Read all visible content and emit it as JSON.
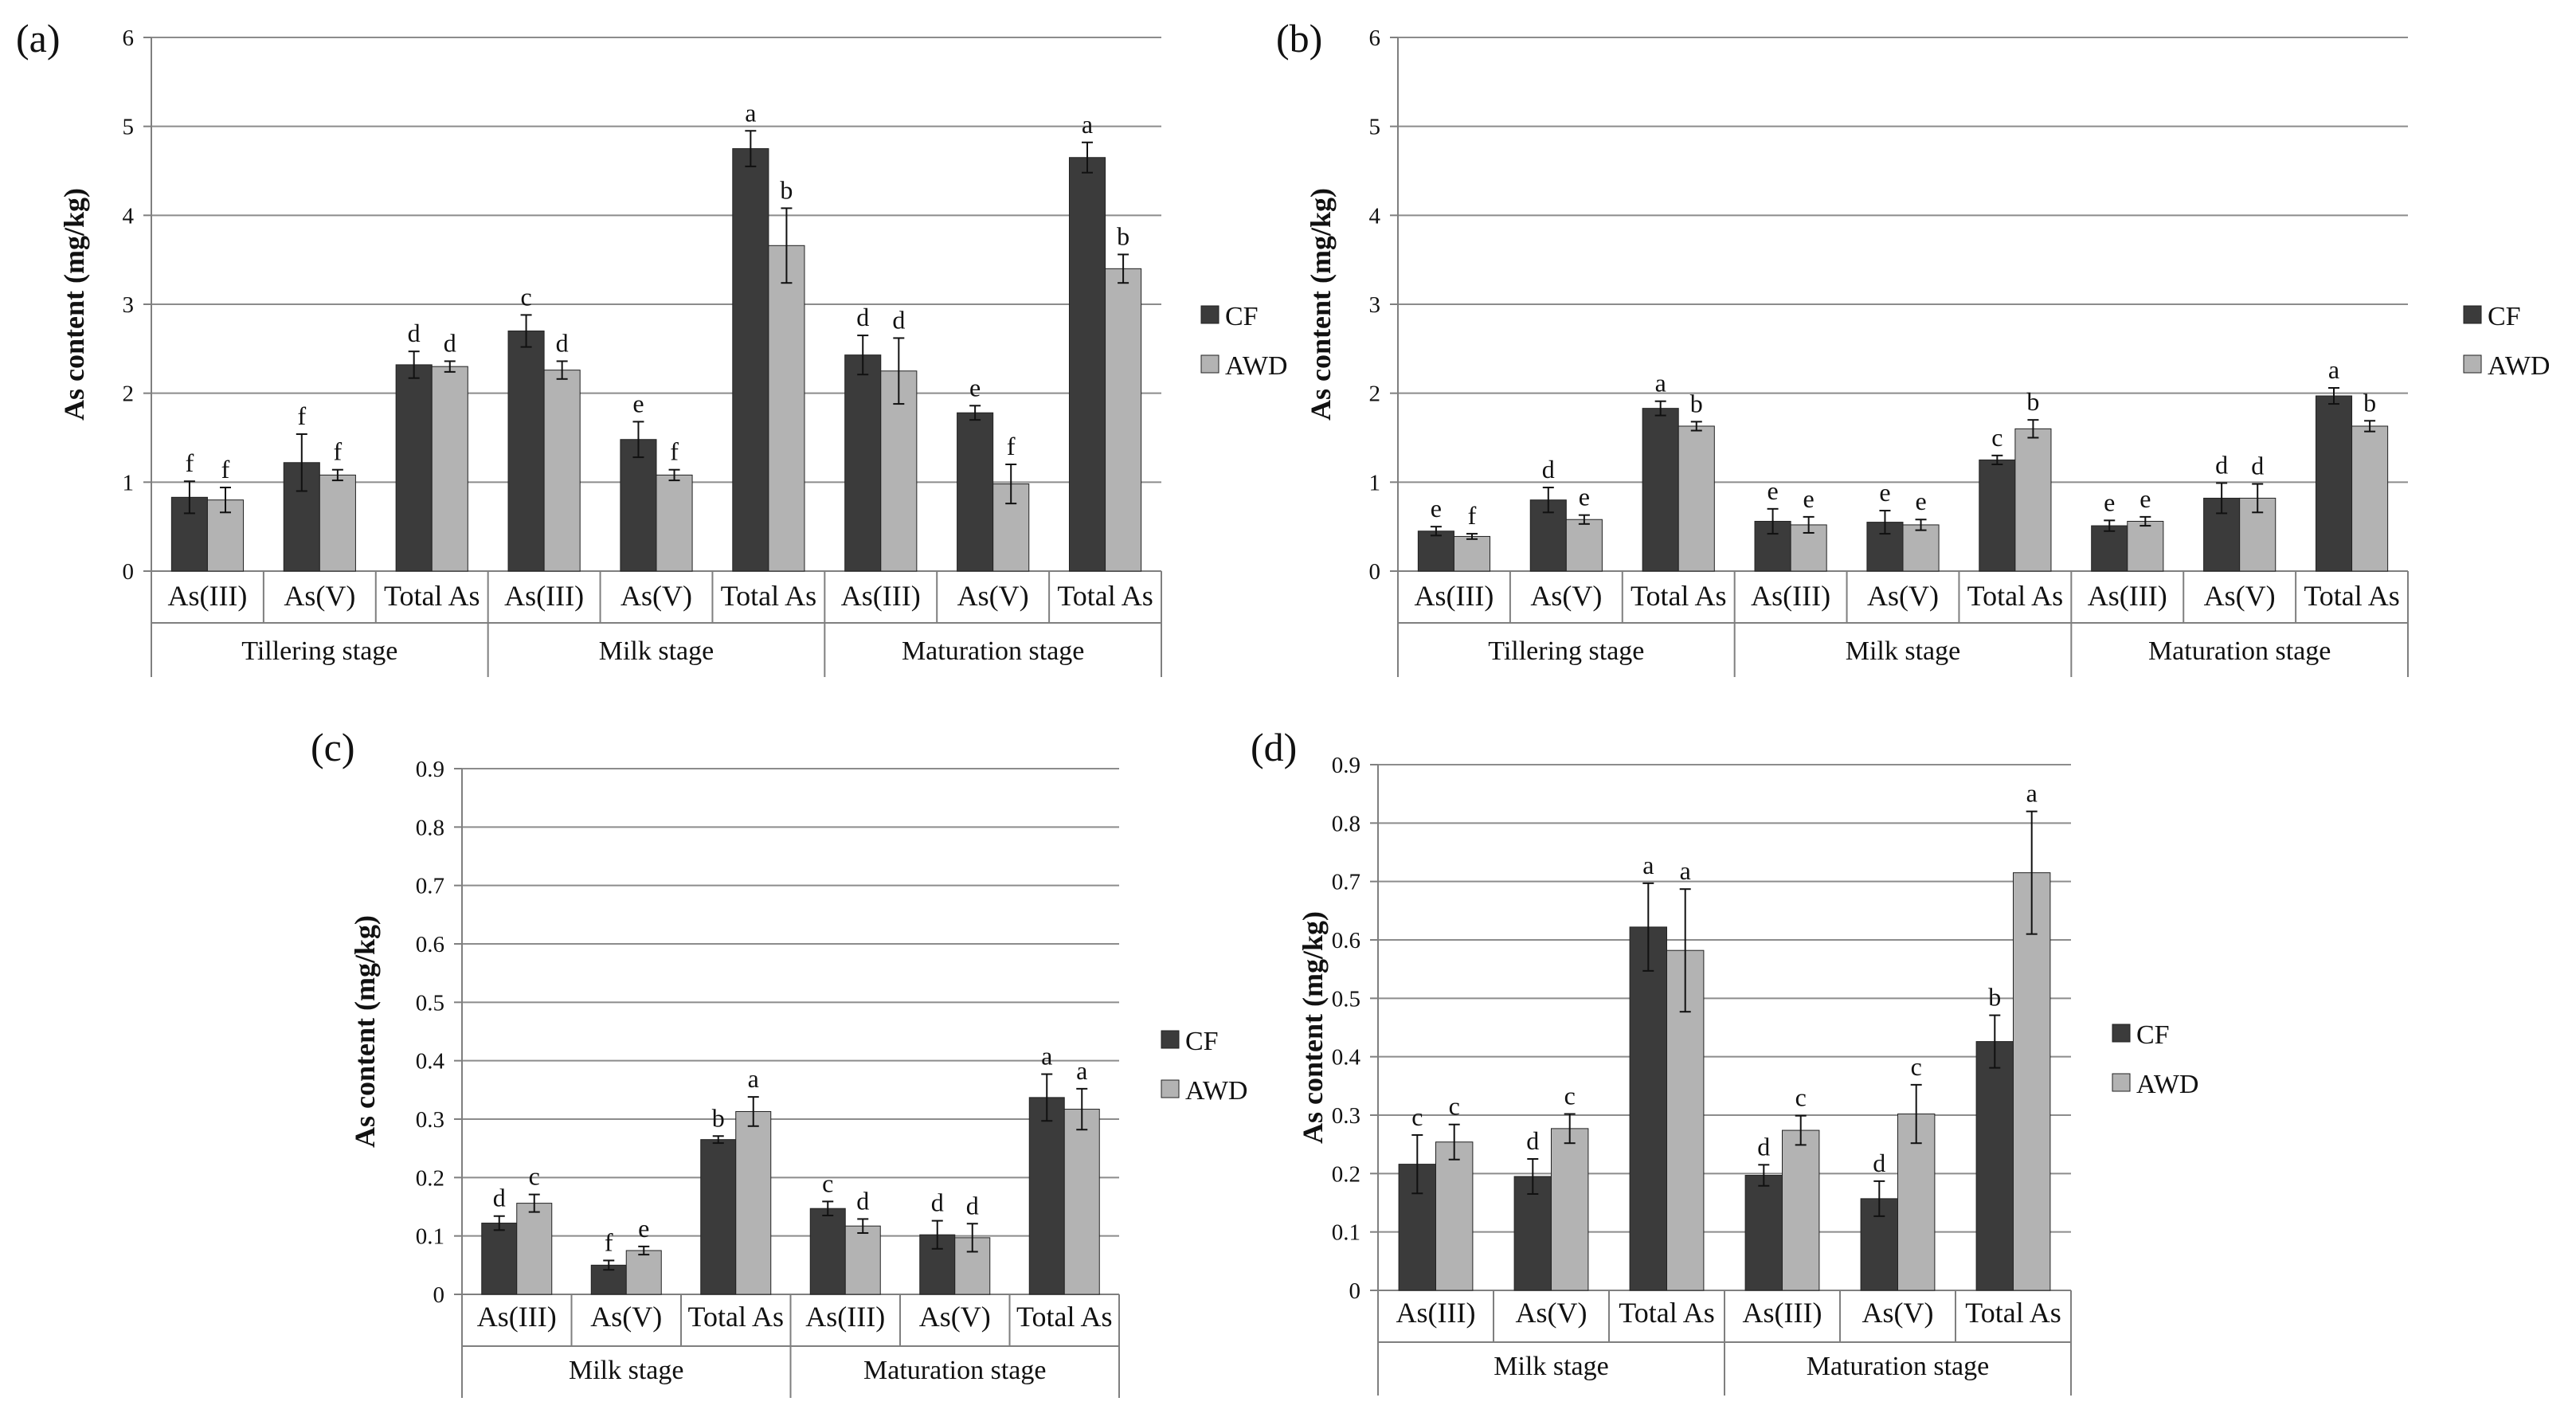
{
  "colors": {
    "CF": "#3b3b3b",
    "AWD": "#b3b3b3",
    "grid": "#8c8c8c",
    "axis": "#7f7f7f",
    "error": "#111111"
  },
  "chart_data": [
    {
      "panel": "(a)",
      "type": "bar",
      "ylabel": "As content (mg/kg)",
      "ylim": [
        0,
        6
      ],
      "yticks": [
        "0",
        "1",
        "2",
        "3",
        "4",
        "5",
        "6"
      ],
      "categories": [
        "As(III)",
        "As(V)",
        "Total As",
        "As(III)",
        "As(V)",
        "Total As",
        "As(III)",
        "As(V)",
        "Total As"
      ],
      "groups": [
        {
          "label": "Tillering stage",
          "count": 3
        },
        {
          "label": "Milk stage",
          "count": 3
        },
        {
          "label": "Maturation stage",
          "count": 3
        }
      ],
      "legend_position": "right",
      "series": [
        {
          "name": "CF",
          "values": [
            0.83,
            1.22,
            2.32,
            2.7,
            1.48,
            4.75,
            2.43,
            1.78,
            4.65
          ],
          "errors": [
            0.18,
            0.32,
            0.15,
            0.18,
            0.2,
            0.2,
            0.22,
            0.08,
            0.17
          ],
          "letters": [
            "f",
            "f",
            "d",
            "c",
            "e",
            "a",
            "d",
            "e",
            "a"
          ]
        },
        {
          "name": "AWD",
          "values": [
            0.8,
            1.08,
            2.3,
            2.26,
            1.08,
            3.66,
            2.25,
            0.98,
            3.4
          ],
          "errors": [
            0.14,
            0.06,
            0.06,
            0.1,
            0.06,
            0.42,
            0.37,
            0.22,
            0.16
          ],
          "letters": [
            "f",
            "f",
            "d",
            "d",
            "f",
            "b",
            "d",
            "f",
            "b"
          ]
        }
      ]
    },
    {
      "panel": "(b)",
      "type": "bar",
      "ylabel": "As content (mg/kg)",
      "ylim": [
        0,
        6
      ],
      "yticks": [
        "0",
        "1",
        "2",
        "3",
        "4",
        "5",
        "6"
      ],
      "categories": [
        "As(III)",
        "As(V)",
        "Total As",
        "As(III)",
        "As(V)",
        "Total As",
        "As(III)",
        "As(V)",
        "Total As"
      ],
      "groups": [
        {
          "label": "Tillering stage",
          "count": 3
        },
        {
          "label": "Milk stage",
          "count": 3
        },
        {
          "label": "Maturation stage",
          "count": 3
        }
      ],
      "legend_position": "right",
      "series": [
        {
          "name": "CF",
          "values": [
            0.45,
            0.8,
            1.83,
            0.56,
            0.55,
            1.25,
            0.51,
            0.82,
            1.97
          ],
          "errors": [
            0.05,
            0.14,
            0.08,
            0.14,
            0.13,
            0.05,
            0.06,
            0.17,
            0.09
          ],
          "letters": [
            "e",
            "d",
            "a",
            "e",
            "e",
            "c",
            "e",
            "d",
            "a"
          ]
        },
        {
          "name": "AWD",
          "values": [
            0.39,
            0.58,
            1.63,
            0.52,
            0.52,
            1.6,
            0.56,
            0.82,
            1.63
          ],
          "errors": [
            0.03,
            0.05,
            0.05,
            0.09,
            0.06,
            0.1,
            0.05,
            0.16,
            0.06
          ],
          "letters": [
            "f",
            "e",
            "b",
            "e",
            "e",
            "b",
            "e",
            "d",
            "b"
          ]
        }
      ]
    },
    {
      "panel": "(c)",
      "type": "bar",
      "ylabel": "As content (mg/kg)",
      "ylim": [
        0,
        0.9
      ],
      "yticks": [
        "0",
        "0.1",
        "0.2",
        "0.3",
        "0.4",
        "0.5",
        "0.6",
        "0.7",
        "0.8",
        "0.9"
      ],
      "categories": [
        "As(III)",
        "As(V)",
        "Total As",
        "As(III)",
        "As(V)",
        "Total As"
      ],
      "groups": [
        {
          "label": "Milk stage",
          "count": 3
        },
        {
          "label": "Maturation stage",
          "count": 3
        }
      ],
      "legend_position": "right",
      "series": [
        {
          "name": "CF",
          "values": [
            0.122,
            0.05,
            0.265,
            0.147,
            0.102,
            0.337
          ],
          "errors": [
            0.012,
            0.008,
            0.006,
            0.012,
            0.024,
            0.04
          ],
          "letters": [
            "d",
            "f",
            "b",
            "c",
            "d",
            "a"
          ]
        },
        {
          "name": "AWD",
          "values": [
            0.156,
            0.075,
            0.313,
            0.117,
            0.097,
            0.317
          ],
          "errors": [
            0.015,
            0.007,
            0.025,
            0.012,
            0.024,
            0.035
          ],
          "letters": [
            "c",
            "e",
            "a",
            "d",
            "d",
            "a"
          ]
        }
      ]
    },
    {
      "panel": "(d)",
      "type": "bar",
      "ylabel": "As content (mg/kg)",
      "ylim": [
        0,
        0.9
      ],
      "yticks": [
        "0",
        "0.1",
        "0.2",
        "0.3",
        "0.4",
        "0.5",
        "0.6",
        "0.7",
        "0.8",
        "0.9"
      ],
      "categories": [
        "As(III)",
        "As(V)",
        "Total As",
        "As(III)",
        "As(V)",
        "Total As"
      ],
      "groups": [
        {
          "label": "Milk stage",
          "count": 3
        },
        {
          "label": "Maturation stage",
          "count": 3
        }
      ],
      "legend_position": "right",
      "series": [
        {
          "name": "CF",
          "values": [
            0.216,
            0.195,
            0.622,
            0.197,
            0.157,
            0.426
          ],
          "errors": [
            0.05,
            0.03,
            0.075,
            0.018,
            0.03,
            0.045
          ],
          "letters": [
            "c",
            "d",
            "a",
            "d",
            "d",
            "b"
          ]
        },
        {
          "name": "AWD",
          "values": [
            0.254,
            0.277,
            0.582,
            0.274,
            0.302,
            0.715
          ],
          "errors": [
            0.03,
            0.025,
            0.105,
            0.025,
            0.05,
            0.105
          ],
          "letters": [
            "c",
            "c",
            "a",
            "c",
            "c",
            "a"
          ]
        }
      ]
    }
  ]
}
